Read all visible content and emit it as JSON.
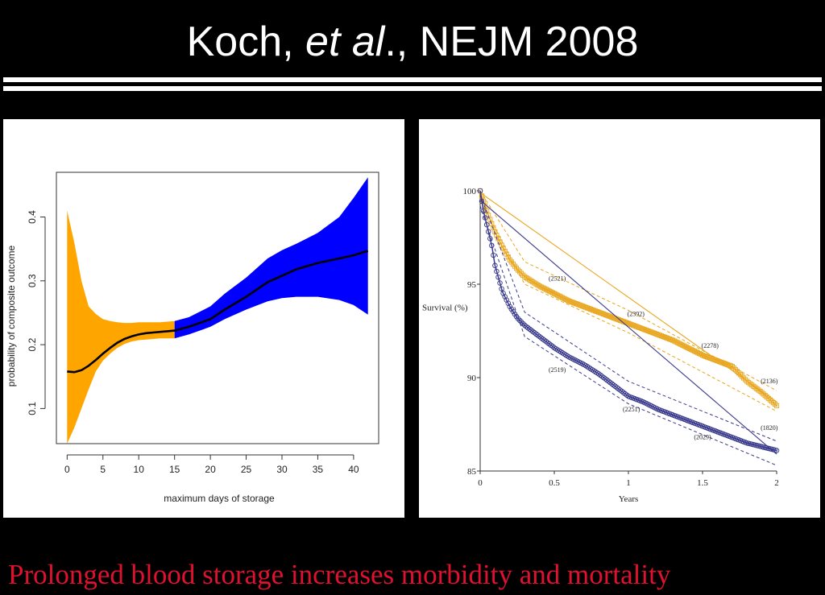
{
  "slide": {
    "title_pre": "Koch, ",
    "title_italic": "et al",
    "title_post": "., NEJM 2008",
    "caption": "Prolonged blood storage increases morbidity and mortality"
  },
  "chart_data": [
    {
      "type": "line",
      "xlabel": "maximum days of storage",
      "ylabel": "probability of composite outcome",
      "xlim": [
        -1.5,
        43.5
      ],
      "ylim": [
        0.045,
        0.47
      ],
      "xticks": [
        0,
        5,
        10,
        15,
        20,
        25,
        30,
        35,
        40
      ],
      "yticks": [
        0.1,
        0.2,
        0.3,
        0.4
      ],
      "split_at": 15,
      "colors": {
        "early": "#ffa500",
        "late": "#0000ff",
        "line": "#000000"
      },
      "series": [
        {
          "x": [
            0,
            1,
            2,
            3,
            4,
            5,
            6,
            7,
            8,
            9,
            10,
            11,
            12,
            13,
            14,
            15,
            17,
            20,
            22,
            25,
            28,
            30,
            32,
            35,
            38,
            40,
            42
          ],
          "y": [
            0.158,
            0.157,
            0.16,
            0.167,
            0.176,
            0.186,
            0.195,
            0.203,
            0.209,
            0.213,
            0.216,
            0.218,
            0.219,
            0.22,
            0.221,
            0.222,
            0.228,
            0.24,
            0.255,
            0.275,
            0.298,
            0.308,
            0.318,
            0.328,
            0.335,
            0.34,
            0.347
          ],
          "lower": [
            0.045,
            0.07,
            0.1,
            0.13,
            0.158,
            0.175,
            0.186,
            0.195,
            0.201,
            0.205,
            0.207,
            0.208,
            0.209,
            0.21,
            0.21,
            0.21,
            0.216,
            0.228,
            0.24,
            0.255,
            0.268,
            0.273,
            0.275,
            0.275,
            0.27,
            0.262,
            0.247
          ],
          "upper": [
            0.41,
            0.36,
            0.3,
            0.26,
            0.248,
            0.24,
            0.237,
            0.235,
            0.234,
            0.234,
            0.235,
            0.235,
            0.235,
            0.235,
            0.236,
            0.237,
            0.243,
            0.26,
            0.28,
            0.305,
            0.335,
            0.348,
            0.358,
            0.375,
            0.4,
            0.43,
            0.462
          ]
        }
      ]
    },
    {
      "type": "line",
      "xlabel": "Years",
      "ylabel": "Survival (%)",
      "xlim": [
        0,
        2
      ],
      "ylim": [
        85,
        100
      ],
      "xticks": [
        0,
        0.5,
        1,
        1.5,
        2
      ],
      "xtick_labels": [
        "0",
        "0.5",
        "1",
        "1.5",
        "2"
      ],
      "yticks": [
        85,
        90,
        95,
        100
      ],
      "colors": {
        "newer": "#e8a61e",
        "older": "#3a3a8c"
      },
      "series": [
        {
          "marker": "square",
          "x": [
            0,
            0.02,
            0.05,
            0.1,
            0.15,
            0.2,
            0.25,
            0.3,
            0.4,
            0.5,
            0.6,
            0.7,
            0.8,
            0.9,
            1.0,
            1.1,
            1.2,
            1.3,
            1.4,
            1.5,
            1.6,
            1.7,
            1.8,
            1.9,
            2.0
          ],
          "y": [
            100,
            99.5,
            98.8,
            97.8,
            97.0,
            96.3,
            95.8,
            95.4,
            94.9,
            94.5,
            94.1,
            93.8,
            93.5,
            93.2,
            92.9,
            92.6,
            92.3,
            92.0,
            91.6,
            91.2,
            90.9,
            90.6,
            89.8,
            89.2,
            88.5
          ],
          "fit": [
            [
              0,
              99.9
            ],
            [
              2,
              88.7
            ]
          ],
          "ci_upper": [
            [
              0,
              100.0
            ],
            [
              0.3,
              96.2
            ],
            [
              1,
              93.6
            ],
            [
              2,
              89.3
            ]
          ],
          "ci_lower": [
            [
              0,
              99.5
            ],
            [
              0.3,
              95.0
            ],
            [
              1,
              92.4
            ],
            [
              2,
              88.2
            ]
          ]
        },
        {
          "marker": "circle",
          "x": [
            0,
            0.02,
            0.05,
            0.08,
            0.1,
            0.15,
            0.2,
            0.25,
            0.3,
            0.4,
            0.5,
            0.6,
            0.7,
            0.8,
            0.9,
            1.0,
            1.1,
            1.2,
            1.3,
            1.4,
            1.5,
            1.6,
            1.7,
            1.8,
            1.9,
            2.0
          ],
          "y": [
            100,
            99.0,
            98.0,
            97.0,
            96.0,
            94.6,
            93.8,
            93.2,
            92.8,
            92.2,
            91.6,
            91.1,
            90.7,
            90.2,
            89.6,
            89.0,
            88.7,
            88.3,
            88.0,
            87.7,
            87.4,
            87.1,
            86.8,
            86.5,
            86.3,
            86.1
          ],
          "fit": [
            [
              0,
              99.5
            ],
            [
              2,
              85.9
            ]
          ],
          "ci_upper": [
            [
              0,
              99.8
            ],
            [
              0.3,
              93.5
            ],
            [
              1,
              89.8
            ],
            [
              2,
              86.6
            ]
          ],
          "ci_lower": [
            [
              0,
              99.2
            ],
            [
              0.3,
              92.2
            ],
            [
              1,
              88.6
            ],
            [
              2,
              85.3
            ]
          ]
        }
      ],
      "annotations": [
        {
          "text": "(2521)",
          "x": 0.52,
          "y": 95.2
        },
        {
          "text": "(2392)",
          "x": 1.05,
          "y": 93.3
        },
        {
          "text": "(2278)",
          "x": 1.55,
          "y": 91.6
        },
        {
          "text": "(2136)",
          "x": 1.95,
          "y": 89.7
        },
        {
          "text": "(2519)",
          "x": 0.52,
          "y": 90.3
        },
        {
          "text": "(2251)",
          "x": 1.02,
          "y": 88.2
        },
        {
          "text": "(2029)",
          "x": 1.5,
          "y": 86.7
        },
        {
          "text": "(1820)",
          "x": 1.95,
          "y": 87.2
        }
      ]
    }
  ]
}
